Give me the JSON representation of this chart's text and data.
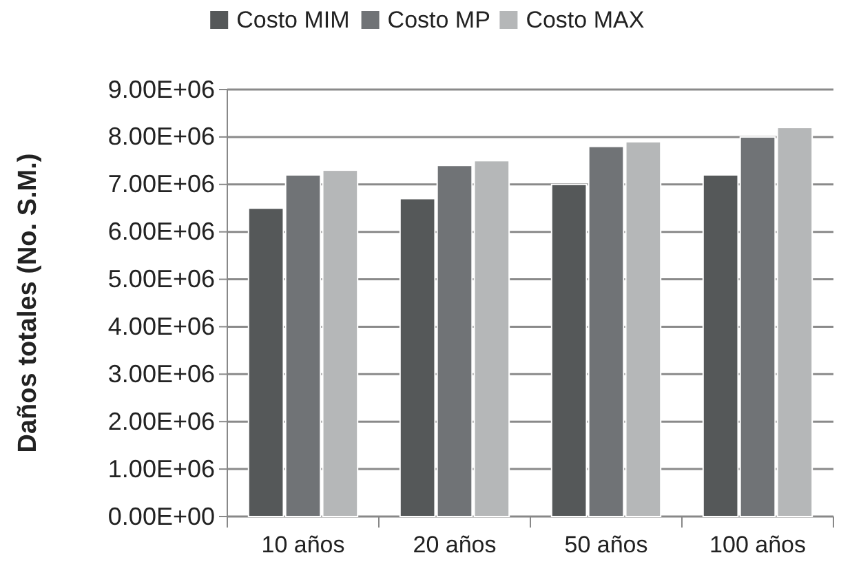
{
  "chart_data": {
    "type": "bar",
    "ylabel": "Daños totales (No. S.M.)",
    "categories": [
      "10 años",
      "20 años",
      "50 años",
      "100 años"
    ],
    "series": [
      {
        "name": "Costo MIM",
        "color": "#555859",
        "values": [
          6500000,
          6700000,
          7000000,
          7200000
        ]
      },
      {
        "name": "Costo MP",
        "color": "#707376",
        "values": [
          7200000,
          7400000,
          7800000,
          8000000
        ]
      },
      {
        "name": "Costo MAX",
        "color": "#b5b7b8",
        "values": [
          7300000,
          7500000,
          7900000,
          8200000
        ]
      }
    ],
    "ylim": [
      0,
      9000000
    ],
    "yticks": [
      {
        "value": 0,
        "label": "0.00E+00"
      },
      {
        "value": 1000000,
        "label": "1.00E+06"
      },
      {
        "value": 2000000,
        "label": "2.00E+06"
      },
      {
        "value": 3000000,
        "label": "3.00E+06"
      },
      {
        "value": 4000000,
        "label": "4.00E+06"
      },
      {
        "value": 5000000,
        "label": "5.00E+06"
      },
      {
        "value": 6000000,
        "label": "6.00E+06"
      },
      {
        "value": 7000000,
        "label": "7.00E+06"
      },
      {
        "value": 8000000,
        "label": "8.00E+06"
      },
      {
        "value": 9000000,
        "label": "9.00E+06"
      }
    ],
    "grid": "y",
    "legend": "top"
  }
}
